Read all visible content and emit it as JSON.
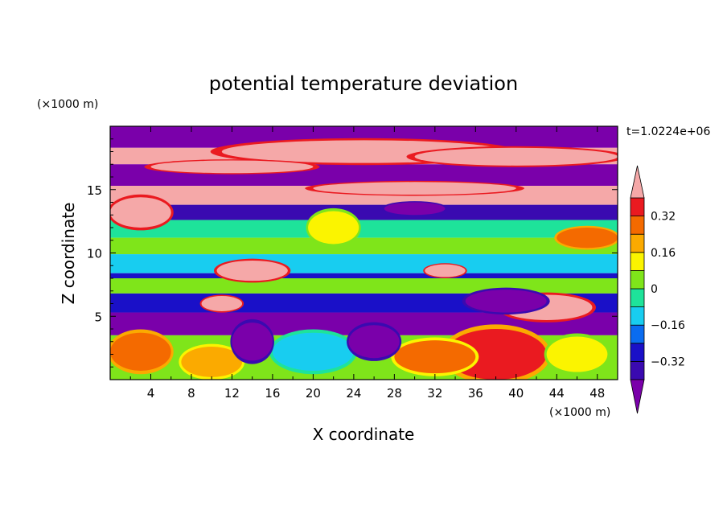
{
  "chart_data": {
    "type": "heatmap",
    "title": "potential temperature deviation",
    "xlabel": "X coordinate",
    "ylabel": "Z coordinate",
    "x_unit_label": "(×1000 m)",
    "y_unit_label": "(×1000 m)",
    "time_label": "t=1.0224e+06",
    "xlim": [
      0,
      50
    ],
    "ylim": [
      0,
      20
    ],
    "x_ticks": [
      4,
      8,
      12,
      16,
      20,
      24,
      28,
      32,
      36,
      40,
      44,
      48
    ],
    "y_ticks": [
      5,
      10,
      15
    ],
    "colorbar": {
      "levels": [
        -0.4,
        -0.32,
        -0.24,
        -0.16,
        -0.08,
        0,
        0.08,
        0.16,
        0.24,
        0.32,
        0.4
      ],
      "tick_labels": [
        "0.32",
        "0.16",
        "0",
        "−0.16",
        "−0.32"
      ],
      "tick_values": [
        0.32,
        0.16,
        0,
        -0.16,
        -0.32
      ],
      "colors": [
        "#7a00aa",
        "#3a0ab0",
        "#1a10c8",
        "#0a6cf0",
        "#18cdf0",
        "#1ee39a",
        "#7fe51a",
        "#fbf400",
        "#fbaa00",
        "#f46a00",
        "#ea1a20",
        "#f5a8a8"
      ],
      "extend": "both"
    },
    "bands": [
      {
        "z": [
          18.3,
          20.0
        ],
        "value": -0.45
      },
      {
        "z": [
          17.0,
          18.3
        ],
        "value": 0.45
      },
      {
        "z": [
          15.3,
          17.0
        ],
        "value": -0.45
      },
      {
        "z": [
          13.8,
          15.3
        ],
        "value": 0.45
      },
      {
        "z": [
          12.6,
          13.8
        ],
        "value": -0.35
      },
      {
        "z": [
          11.2,
          12.6
        ],
        "value": -0.05
      },
      {
        "z": [
          9.9,
          11.2
        ],
        "value": 0.02
      },
      {
        "z": [
          8.4,
          9.9
        ],
        "value": -0.1
      },
      {
        "z": [
          8.0,
          8.4
        ],
        "value": -0.3
      },
      {
        "z": [
          6.8,
          8.0
        ],
        "value": 0.05
      },
      {
        "z": [
          5.3,
          6.8
        ],
        "value": -0.25
      },
      {
        "z": [
          3.5,
          5.3
        ],
        "value": -0.45
      },
      {
        "z": [
          0.0,
          3.5
        ],
        "value": 0.0
      }
    ],
    "blobs": [
      {
        "x": 25,
        "z": 18.0,
        "rx": 14,
        "rz": 0.9,
        "value": 0.45
      },
      {
        "x": 40,
        "z": 17.6,
        "rx": 10,
        "rz": 0.7,
        "value": 0.45
      },
      {
        "x": 12,
        "z": 16.8,
        "rx": 8,
        "rz": 0.5,
        "value": 0.45
      },
      {
        "x": 30,
        "z": 15.1,
        "rx": 10,
        "rz": 0.5,
        "value": 0.45
      },
      {
        "x": 3,
        "z": 13.2,
        "rx": 3,
        "rz": 1.2,
        "value": 0.45
      },
      {
        "x": 47,
        "z": 11.2,
        "rx": 3,
        "rz": 0.8,
        "value": 0.3
      },
      {
        "x": 14,
        "z": 8.6,
        "rx": 3.5,
        "rz": 0.8,
        "value": 0.45
      },
      {
        "x": 33,
        "z": 8.6,
        "rx": 2,
        "rz": 0.5,
        "value": 0.45
      },
      {
        "x": 43,
        "z": 5.7,
        "rx": 4.5,
        "rz": 1.0,
        "value": 0.45
      },
      {
        "x": 11,
        "z": 6.0,
        "rx": 2,
        "rz": 0.6,
        "value": 0.45
      },
      {
        "x": 3,
        "z": 2.2,
        "rx": 3,
        "rz": 1.5,
        "value": 0.3
      },
      {
        "x": 38,
        "z": 2.0,
        "rx": 5,
        "rz": 2.0,
        "value": 0.35
      },
      {
        "x": 32,
        "z": 1.8,
        "rx": 4,
        "rz": 1.3,
        "value": 0.25
      },
      {
        "x": 20,
        "z": 2.2,
        "rx": 4,
        "rz": 1.5,
        "value": -0.15
      },
      {
        "x": 10,
        "z": 1.4,
        "rx": 3,
        "rz": 1.2,
        "value": 0.2
      },
      {
        "x": 46,
        "z": 2.0,
        "rx": 3,
        "rz": 1.4,
        "value": 0.15
      },
      {
        "x": 14,
        "z": 3.0,
        "rx": 2,
        "rz": 1.5,
        "value": -0.45
      },
      {
        "x": 26,
        "z": 3.0,
        "rx": 2.5,
        "rz": 1.3,
        "value": -0.45
      },
      {
        "x": 22,
        "z": 12.0,
        "rx": 2.5,
        "rz": 1.3,
        "value": 0.15
      },
      {
        "x": 39,
        "z": 6.2,
        "rx": 4,
        "rz": 0.9,
        "value": -0.45
      },
      {
        "x": 30,
        "z": 13.5,
        "rx": 3,
        "rz": 0.5,
        "value": -0.45
      }
    ]
  }
}
